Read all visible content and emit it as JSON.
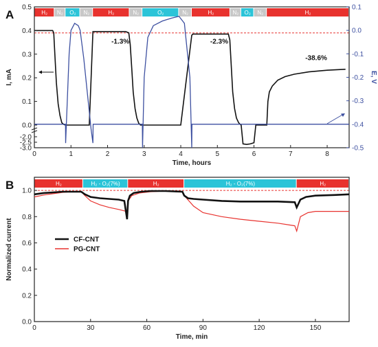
{
  "chart_data": [
    {
      "panel": "A",
      "type": "line",
      "xlabel": "Time, hours",
      "ylabel": "I, mA",
      "y2label": "E, V",
      "xlim": [
        0,
        8.6
      ],
      "xticks": [
        "0",
        "1",
        "2",
        "3",
        "4",
        "5",
        "6",
        "7",
        "8"
      ],
      "ylim_upper": [
        0,
        0.5
      ],
      "yticks_upper": [
        "0.0",
        "0.1",
        "0.2",
        "0.3",
        "0.4",
        "0.5"
      ],
      "ylim_lower": [
        -3.0,
        -2.0
      ],
      "yticks_lower": [
        "-2.0",
        "-2.5",
        "-3.0"
      ],
      "y2lim": [
        -0.5,
        0.1
      ],
      "y2ticks": [
        "0.1",
        "0.0",
        "-0.1",
        "-0.2",
        "-0.3",
        "-0.4",
        "-0.5"
      ],
      "reference_line_current": 0.39,
      "gas_segments": [
        {
          "label": "H₂",
          "start": 0.0,
          "end": 0.55,
          "color": "#e8322e"
        },
        {
          "label": "N₂",
          "start": 0.55,
          "end": 0.85,
          "color": "#c8c8c8"
        },
        {
          "label": "O₂",
          "start": 0.85,
          "end": 1.25,
          "color": "#2bc4d8"
        },
        {
          "label": "N₂",
          "start": 1.25,
          "end": 1.6,
          "color": "#c8c8c8"
        },
        {
          "label": "H₂",
          "start": 1.6,
          "end": 2.6,
          "color": "#e8322e"
        },
        {
          "label": "N₂",
          "start": 2.6,
          "end": 2.95,
          "color": "#c8c8c8"
        },
        {
          "label": "O₂",
          "start": 2.95,
          "end": 3.95,
          "color": "#2bc4d8"
        },
        {
          "label": "N₂",
          "start": 3.95,
          "end": 4.3,
          "color": "#c8c8c8"
        },
        {
          "label": "H₂",
          "start": 4.3,
          "end": 5.35,
          "color": "#e8322e"
        },
        {
          "label": "N₂",
          "start": 5.35,
          "end": 5.65,
          "color": "#c8c8c8"
        },
        {
          "label": "O₂",
          "start": 5.65,
          "end": 6.0,
          "color": "#2bc4d8"
        },
        {
          "label": "N₂",
          "start": 6.0,
          "end": 6.35,
          "color": "#c8c8c8"
        },
        {
          "label": "H₂",
          "start": 6.35,
          "end": 8.6,
          "color": "#e8322e"
        }
      ],
      "annotations": [
        {
          "text": "-1.3%",
          "x": 2.35,
          "y": 0.345
        },
        {
          "text": "-2.3%",
          "x": 5.05,
          "y": 0.345
        },
        {
          "text": "-38.6%",
          "x": 7.7,
          "y": 0.275
        }
      ],
      "series": [
        {
          "name": "Current",
          "axis": "left",
          "color": "#111111",
          "x": [
            0.0,
            0.05,
            0.5,
            0.53,
            0.56,
            0.6,
            0.65,
            0.7,
            0.75,
            0.8,
            0.85,
            0.9,
            1.0,
            1.25,
            1.5,
            1.6,
            1.63,
            1.7,
            2.0,
            2.5,
            2.58,
            2.62,
            2.66,
            2.7,
            2.75,
            2.8,
            2.85,
            2.9,
            2.95,
            3.5,
            4.0,
            4.3,
            4.33,
            4.4,
            4.8,
            5.2,
            5.3,
            5.34,
            5.38,
            5.42,
            5.47,
            5.52,
            5.58,
            5.63,
            5.65,
            5.7,
            5.8,
            5.9,
            6.0,
            6.05,
            6.1,
            6.2,
            6.3,
            6.35,
            6.38,
            6.42,
            6.5,
            6.65,
            6.85,
            7.1,
            7.5,
            8.0,
            8.5
          ],
          "y": [
            0.4,
            0.4,
            0.4,
            0.39,
            0.3,
            0.18,
            0.09,
            0.04,
            0.01,
            0.003,
            0.0,
            0.0,
            0.0,
            0.0,
            0.0,
            0.395,
            0.395,
            0.395,
            0.395,
            0.395,
            0.39,
            0.34,
            0.24,
            0.14,
            0.07,
            0.03,
            0.008,
            0.0,
            0.0,
            0.0,
            0.0,
            0.38,
            0.385,
            0.385,
            0.385,
            0.385,
            0.385,
            0.36,
            0.25,
            0.14,
            0.07,
            0.03,
            0.01,
            0.002,
            0.0,
            -2.65,
            -2.7,
            -2.65,
            -2.55,
            0.0,
            0.0,
            0.0,
            0.0,
            0.0,
            0.1,
            0.14,
            0.165,
            0.19,
            0.205,
            0.215,
            0.225,
            0.232,
            0.236
          ]
        },
        {
          "name": "Potential",
          "axis": "right",
          "color": "#3c4fa0",
          "x": [
            0.0,
            0.55,
            0.85,
            0.855,
            0.9,
            0.95,
            1.0,
            1.1,
            1.2,
            1.25,
            1.35,
            1.45,
            1.55,
            1.6,
            1.605,
            2.95,
            2.955,
            3.0,
            3.1,
            3.25,
            3.5,
            3.75,
            3.95,
            4.1,
            4.25,
            4.3,
            4.305,
            8.6
          ],
          "y": [
            -0.4,
            -0.4,
            -0.4,
            -0.48,
            -0.3,
            -0.1,
            0.0,
            0.03,
            0.02,
            0.0,
            -0.12,
            -0.27,
            -0.42,
            -0.48,
            -0.4,
            -0.4,
            -0.5,
            -0.2,
            -0.03,
            0.02,
            0.04,
            0.052,
            0.06,
            0.03,
            -0.2,
            -0.5,
            -0.4,
            -0.4
          ]
        }
      ]
    },
    {
      "panel": "B",
      "type": "line",
      "xlabel": "Time, min",
      "ylabel": "Normalized current",
      "xlim": [
        0,
        168
      ],
      "xticks": [
        "0",
        "30",
        "60",
        "90",
        "120",
        "150"
      ],
      "ylim": [
        0.0,
        1.1
      ],
      "yticks": [
        "0.0",
        "0.2",
        "0.4",
        "0.6",
        "0.8",
        "1.0"
      ],
      "reference_line": 1.0,
      "gas_segments": [
        {
          "label": "H₂",
          "start": 0,
          "end": 26,
          "color": "#e8322e"
        },
        {
          "label": "H₂ - O₂(7%)",
          "start": 26,
          "end": 50,
          "color": "#2bc4d8"
        },
        {
          "label": "H₂",
          "start": 50,
          "end": 80,
          "color": "#e8322e"
        },
        {
          "label": "H₂ - O₂(7%)",
          "start": 80,
          "end": 140,
          "color": "#2bc4d8"
        },
        {
          "label": "H₂",
          "start": 140,
          "end": 168,
          "color": "#e8322e"
        }
      ],
      "series": [
        {
          "name": "CF-CNT",
          "color": "#111111",
          "x": [
            0,
            5,
            10,
            15,
            20,
            25,
            27,
            30,
            35,
            40,
            45,
            48,
            49.5,
            50,
            51,
            53,
            57,
            62,
            70,
            79,
            80,
            82,
            85,
            90,
            100,
            110,
            120,
            130,
            139,
            140,
            142,
            145,
            150,
            160,
            168
          ],
          "y": [
            0.97,
            0.98,
            0.985,
            0.99,
            0.99,
            0.99,
            0.97,
            0.95,
            0.94,
            0.935,
            0.93,
            0.92,
            0.78,
            0.92,
            0.96,
            0.98,
            0.99,
            0.995,
            0.995,
            0.99,
            0.96,
            0.94,
            0.935,
            0.93,
            0.92,
            0.915,
            0.915,
            0.915,
            0.91,
            0.87,
            0.93,
            0.95,
            0.96,
            0.965,
            0.97
          ]
        },
        {
          "name": "PG-CNT",
          "color": "#e8322e",
          "x": [
            0,
            5,
            10,
            15,
            20,
            25,
            27,
            30,
            35,
            40,
            45,
            49,
            49.5,
            50,
            52,
            56,
            62,
            70,
            79,
            80,
            85,
            90,
            100,
            110,
            120,
            130,
            139,
            140,
            142,
            146,
            150,
            160,
            168
          ],
          "y": [
            0.95,
            0.965,
            0.975,
            0.985,
            0.99,
            0.99,
            0.96,
            0.92,
            0.89,
            0.87,
            0.855,
            0.84,
            0.8,
            0.92,
            0.96,
            0.98,
            0.99,
            0.995,
            0.99,
            0.96,
            0.88,
            0.83,
            0.8,
            0.78,
            0.765,
            0.75,
            0.73,
            0.69,
            0.8,
            0.83,
            0.84,
            0.84,
            0.84
          ]
        }
      ]
    }
  ]
}
